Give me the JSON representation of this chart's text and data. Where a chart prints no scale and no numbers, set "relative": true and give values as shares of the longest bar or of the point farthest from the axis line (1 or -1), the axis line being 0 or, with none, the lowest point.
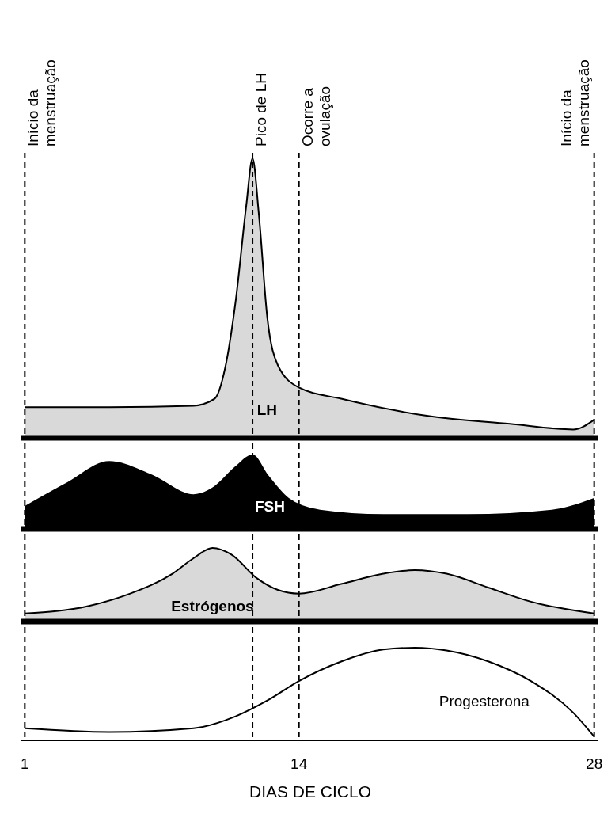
{
  "chart_data": [
    {
      "type": "area",
      "relative": true,
      "xlim": [
        0.8,
        28.2
      ],
      "tick_labels": false,
      "legend": false,
      "series": [
        {
          "name": "LH",
          "color": "#d9d9d9",
          "x": [
            1,
            5,
            9,
            10,
            10.5,
            11,
            11.5,
            11.8,
            12.1,
            12.5,
            13,
            14,
            16,
            20,
            24,
            27,
            28
          ],
          "values": [
            0.11,
            0.11,
            0.115,
            0.14,
            0.25,
            0.49,
            0.83,
            1,
            0.8,
            0.43,
            0.26,
            0.18,
            0.14,
            0.08,
            0.05,
            0.03,
            0.065
          ]
        }
      ],
      "ref_lines": [
        {
          "axis": "x",
          "value": 1,
          "label": "Início da menstruação",
          "line_style": "dashed"
        },
        {
          "axis": "x",
          "value": 11.8,
          "label": "Pico de LH",
          "line_style": "dashed"
        },
        {
          "axis": "x",
          "value": 14,
          "label": "Ocorre a ovulação",
          "line_style": "dashed"
        },
        {
          "axis": "x",
          "value": 28,
          "label": "Início da menstruação",
          "line_style": "dashed"
        }
      ]
    },
    {
      "type": "area",
      "relative": true,
      "xlim": [
        0.8,
        28.2
      ],
      "tick_labels": false,
      "legend": false,
      "series": [
        {
          "name": "FSH",
          "color": "#000000",
          "x": [
            1,
            3,
            5,
            7,
            9,
            10,
            11,
            11.8,
            12.5,
            13.5,
            15,
            18,
            22,
            26,
            28
          ],
          "values": [
            0.3,
            0.62,
            0.91,
            0.73,
            0.46,
            0.57,
            0.84,
            1,
            0.73,
            0.41,
            0.25,
            0.19,
            0.19,
            0.25,
            0.41
          ]
        }
      ],
      "ref_lines": [
        {
          "axis": "x",
          "value": 1,
          "line_style": "dashed"
        },
        {
          "axis": "x",
          "value": 11.8,
          "line_style": "dashed"
        },
        {
          "axis": "x",
          "value": 14,
          "line_style": "dashed"
        },
        {
          "axis": "x",
          "value": 28,
          "line_style": "dashed"
        }
      ]
    },
    {
      "type": "area",
      "relative": true,
      "xlim": [
        0.8,
        28.2
      ],
      "tick_labels": false,
      "legend": false,
      "series": [
        {
          "name": "Estrógenos",
          "color": "#d9d9d9",
          "x": [
            1,
            4,
            6,
            8,
            9,
            9.9,
            10.8,
            12,
            13,
            14,
            16,
            18,
            19.5,
            21,
            23,
            25,
            28
          ],
          "values": [
            0.11,
            0.21,
            0.38,
            0.65,
            0.86,
            1,
            0.91,
            0.59,
            0.43,
            0.38,
            0.51,
            0.65,
            0.7,
            0.65,
            0.46,
            0.27,
            0.11
          ]
        }
      ],
      "ref_lines": [
        {
          "axis": "x",
          "value": 1,
          "line_style": "dashed"
        },
        {
          "axis": "x",
          "value": 11.8,
          "line_style": "dashed"
        },
        {
          "axis": "x",
          "value": 14,
          "line_style": "dashed"
        },
        {
          "axis": "x",
          "value": 28,
          "line_style": "dashed"
        }
      ]
    },
    {
      "type": "area",
      "relative": true,
      "xlim": [
        0.8,
        28.2
      ],
      "xticks": [
        1,
        14,
        28
      ],
      "tick_labels": "x",
      "xlabel": "DIAS DE CICLO",
      "legend": false,
      "series": [
        {
          "name": "Progesterona",
          "color": "#ffffff",
          "x": [
            1,
            5,
            9,
            11,
            12.5,
            14,
            16,
            18,
            19.5,
            21,
            23,
            25,
            27,
            28
          ],
          "values": [
            0.13,
            0.09,
            0.13,
            0.26,
            0.43,
            0.64,
            0.85,
            0.98,
            1,
            0.97,
            0.85,
            0.64,
            0.3,
            0.04
          ]
        }
      ],
      "ref_lines": [
        {
          "axis": "x",
          "value": 1,
          "line_style": "dashed"
        },
        {
          "axis": "x",
          "value": 11.8,
          "line_style": "dashed"
        },
        {
          "axis": "x",
          "value": 14,
          "line_style": "dashed"
        },
        {
          "axis": "x",
          "value": 28,
          "line_style": "dashed"
        }
      ]
    }
  ]
}
